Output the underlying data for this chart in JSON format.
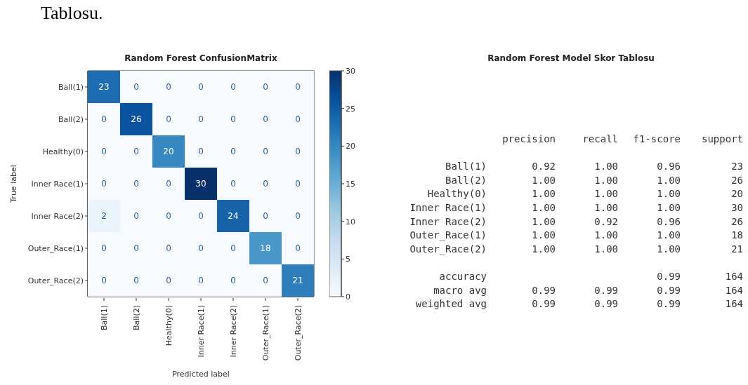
{
  "chart_data": [
    {
      "type": "heatmap",
      "title": "Random Forest ConfusionMatrix",
      "xlabel": "Predicted label",
      "ylabel": "True label",
      "categories": [
        "Ball(1)",
        "Ball(2)",
        "Healthy(0)",
        "Inner Race(1)",
        "Inner Race(2)",
        "Outer_Race(1)",
        "Outer_Race(2)"
      ],
      "y_categories": [
        "Ball(1)",
        "Ball(2)",
        "Healthy(0)",
        "Inner Race(1)",
        "Inner Race(2)",
        "Outer_Race(1)",
        "Outer_Race(2)"
      ],
      "cells": [
        [
          23,
          0,
          0,
          0,
          0,
          0,
          0
        ],
        [
          0,
          26,
          0,
          0,
          0,
          0,
          0
        ],
        [
          0,
          0,
          20,
          0,
          0,
          0,
          0
        ],
        [
          0,
          0,
          0,
          30,
          0,
          0,
          0
        ],
        [
          2,
          0,
          0,
          0,
          24,
          0,
          0
        ],
        [
          0,
          0,
          0,
          0,
          0,
          18,
          0
        ],
        [
          0,
          0,
          0,
          0,
          0,
          0,
          21
        ]
      ],
      "clim": [
        0,
        30
      ],
      "cticks": [
        0,
        5,
        10,
        15,
        20,
        25,
        30
      ],
      "data_labels": true,
      "annotations": [
        "Tablosu."
      ]
    },
    {
      "type": "other",
      "title": "Random Forest Model Skor Tablosu",
      "categories": [
        "Ball(1)",
        "Ball(2)",
        "Healthy(0)",
        "Inner Race(1)",
        "Inner Race(2)",
        "Outer_Race(1)",
        "Outer_Race(2)",
        null,
        "accuracy",
        "macro avg",
        "weighted avg"
      ],
      "series": [
        {
          "name": "precision",
          "values": [
            0.92,
            1,
            1,
            1,
            1,
            1,
            1,
            null,
            null,
            0.99,
            0.99
          ],
          "value_labels": [
            "0.92",
            "1.00",
            "1.00",
            "1.00",
            "1.00",
            "1.00",
            "1.00",
            null,
            null,
            "0.99",
            "0.99"
          ]
        },
        {
          "name": "recall",
          "values": [
            1,
            1,
            1,
            1,
            0.92,
            1,
            1,
            null,
            null,
            0.99,
            0.99
          ],
          "value_labels": [
            "1.00",
            "1.00",
            "1.00",
            "1.00",
            "0.92",
            "1.00",
            "1.00",
            null,
            null,
            "0.99",
            "0.99"
          ]
        },
        {
          "name": "f1-score",
          "values": [
            0.96,
            1,
            1,
            1,
            0.96,
            1,
            1,
            null,
            0.99,
            0.99,
            0.99
          ],
          "value_labels": [
            "0.96",
            "1.00",
            "1.00",
            "1.00",
            "0.96",
            "1.00",
            "1.00",
            null,
            "0.99",
            "0.99",
            "0.99"
          ]
        },
        {
          "name": "support",
          "values": [
            23,
            26,
            20,
            30,
            26,
            18,
            21,
            null,
            164,
            164,
            164
          ],
          "value_labels": [
            "23",
            "26",
            "20",
            "30",
            "26",
            "18",
            "21",
            null,
            "164",
            "164",
            "164"
          ]
        }
      ]
    }
  ]
}
